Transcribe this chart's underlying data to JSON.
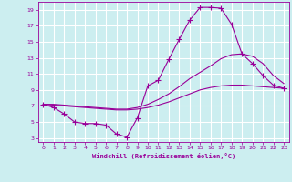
{
  "xlabel": "Windchill (Refroidissement éolien,°C)",
  "bg_color": "#cceef0",
  "grid_color": "#ffffff",
  "line_color": "#990099",
  "xlim": [
    -0.5,
    23.5
  ],
  "ylim": [
    2.5,
    20.0
  ],
  "xticks": [
    0,
    1,
    2,
    3,
    4,
    5,
    6,
    7,
    8,
    9,
    10,
    11,
    12,
    13,
    14,
    15,
    16,
    17,
    18,
    19,
    20,
    21,
    22,
    23
  ],
  "yticks": [
    3,
    5,
    7,
    9,
    11,
    13,
    15,
    17,
    19
  ],
  "line1_x": [
    0,
    1,
    2,
    3,
    4,
    5,
    6,
    7,
    8,
    9,
    10,
    11,
    12,
    13,
    14,
    15,
    16,
    17,
    18,
    19,
    20,
    21,
    22,
    23
  ],
  "line1_y": [
    7.2,
    6.8,
    6.0,
    5.0,
    4.8,
    4.8,
    4.6,
    3.5,
    3.1,
    5.5,
    9.5,
    10.2,
    12.8,
    15.3,
    17.7,
    19.3,
    19.3,
    19.2,
    17.2,
    13.5,
    12.3,
    10.8,
    9.6,
    9.2
  ],
  "line2_x": [
    0,
    1,
    2,
    3,
    4,
    5,
    6,
    7,
    8,
    9,
    10,
    11,
    12,
    13,
    14,
    15,
    16,
    17,
    18,
    19,
    20,
    21,
    22,
    23
  ],
  "line2_y": [
    7.2,
    7.1,
    7.0,
    6.9,
    6.8,
    6.7,
    6.6,
    6.5,
    6.5,
    6.6,
    6.8,
    7.1,
    7.5,
    8.0,
    8.5,
    9.0,
    9.3,
    9.5,
    9.6,
    9.6,
    9.5,
    9.4,
    9.3,
    9.2
  ],
  "line3_x": [
    0,
    1,
    2,
    3,
    4,
    5,
    6,
    7,
    8,
    9,
    10,
    11,
    12,
    13,
    14,
    15,
    16,
    17,
    18,
    19,
    20,
    21,
    22,
    23
  ],
  "line3_y": [
    7.2,
    7.2,
    7.1,
    7.0,
    6.9,
    6.8,
    6.7,
    6.6,
    6.6,
    6.8,
    7.2,
    7.8,
    8.5,
    9.4,
    10.4,
    11.2,
    12.0,
    12.9,
    13.4,
    13.5,
    13.2,
    12.3,
    10.8,
    9.8
  ]
}
